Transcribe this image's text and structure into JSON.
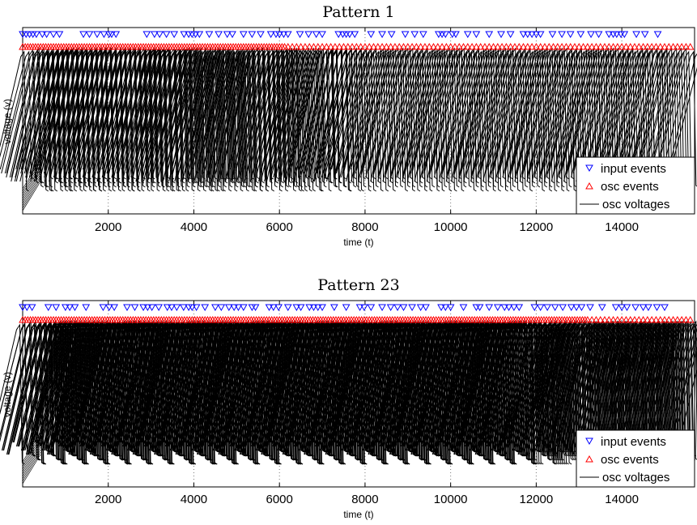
{
  "colors": {
    "input": "#0000ff",
    "osc": "#ff0000",
    "voltage": "#000000"
  },
  "chart_data": [
    {
      "type": "line",
      "title": "Pattern 1",
      "xlabel": "time (t)",
      "ylabel": "voltage (v)",
      "xlim": [
        0,
        15700
      ],
      "xticks": [
        2000,
        4000,
        6000,
        8000,
        10000,
        12000,
        14000
      ],
      "grid": "dotted vertical lines at x ticks",
      "legend": {
        "placement": "lower-right",
        "entries": [
          "input events",
          "osc events",
          "osc voltages"
        ]
      },
      "series": [
        {
          "name": "input events",
          "kind": "marker-down-triangle",
          "x": [
            0,
            80,
            160,
            240,
            320,
            460,
            560,
            720,
            860,
            1420,
            1560,
            1740,
            1900,
            2020,
            2080,
            2180,
            2900,
            3080,
            3200,
            3360,
            3540,
            3770,
            3880,
            3960,
            4040,
            4130,
            4360,
            4580,
            4780,
            4900,
            5160,
            5360,
            5560,
            5800,
            5920,
            6000,
            6100,
            6200,
            6480,
            6680,
            6860,
            7000,
            7380,
            7480,
            7560,
            7640,
            7760,
            8140,
            8400,
            8620,
            8940,
            9160,
            9360,
            9720,
            9800,
            9880,
            10040,
            10120,
            10400,
            10600,
            10900,
            11180,
            11400,
            11700,
            11800,
            11900,
            12000,
            12100,
            12380,
            12600,
            12800,
            13040,
            13280,
            13460,
            13700,
            13800,
            13880,
            13980,
            14060,
            14340,
            14540,
            14840
          ]
        },
        {
          "name": "osc events",
          "kind": "marker-up-triangle",
          "x": [
            0,
            60,
            120,
            180,
            240,
            300,
            360,
            420,
            480,
            540,
            600,
            660,
            720,
            780,
            840,
            900,
            960,
            1020,
            1080,
            1140,
            1200,
            1260,
            1320,
            1380,
            1440,
            1500,
            1560,
            1620,
            1680,
            1740,
            1800,
            1860,
            1920,
            1980,
            2040,
            2100,
            2160,
            2220,
            2280,
            2340,
            2400,
            2460,
            2520,
            2580,
            2640,
            2700,
            2760,
            2820,
            2880,
            2940,
            3000,
            3060,
            3120,
            3180,
            3240,
            3300,
            3360,
            3420,
            3480,
            3540,
            3600,
            3660,
            3720,
            3780,
            3840,
            3900,
            3960,
            4020,
            4080,
            4140,
            4200,
            4260,
            4320,
            4380,
            4440,
            4500,
            4560,
            4620,
            4680,
            4740,
            4800,
            4860,
            4920,
            4980,
            5040,
            5100,
            5160,
            5220,
            5280,
            5340,
            5400,
            5460,
            5520,
            5580,
            5640,
            5700,
            5760,
            5820,
            5880,
            5940,
            6000,
            6060,
            6120,
            6200,
            6300,
            6400,
            6500,
            6600,
            6700,
            6800,
            6900,
            7000,
            7100,
            7200,
            7300,
            7400,
            7500,
            7600,
            7700,
            7800,
            7900,
            8000,
            8100,
            8200,
            8300,
            8400,
            8500,
            8600,
            8700,
            8800,
            8900,
            9000,
            9100,
            9200,
            9300,
            9400,
            9500,
            9600,
            9700,
            9800,
            9900,
            10000,
            10100,
            10200,
            10300,
            10400,
            10500,
            10600,
            10700,
            10800,
            10900,
            11000,
            11100,
            11200,
            11300,
            11400,
            11500,
            11600,
            11700,
            11800,
            11900,
            12000,
            12100,
            12200,
            12300,
            12400,
            12500,
            12600,
            12700,
            12800,
            12900,
            13000,
            13100,
            13200,
            13300,
            13400,
            13500,
            13600,
            13700,
            13800,
            13900,
            14000,
            14100,
            14200,
            14300,
            14400,
            14500,
            14600,
            14700,
            14800,
            14900,
            15000,
            15100,
            15200,
            15300,
            15400,
            15500,
            15600
          ]
        },
        {
          "name": "osc voltages",
          "kind": "line",
          "spikes": [
            600,
            800,
            950,
            1150,
            1400,
            1600,
            1850,
            2050,
            2300,
            2500,
            2750,
            2950,
            3200,
            3450,
            3650,
            3900,
            4150,
            4400,
            4650,
            4900,
            5150,
            5400,
            5650,
            5950,
            6200,
            6500,
            6800,
            7100,
            7450,
            7800,
            8200,
            8600,
            9000,
            9400,
            9800,
            10200,
            10600,
            11000,
            11400,
            11800,
            12200,
            12600,
            13000,
            13400,
            13800,
            14200,
            14600,
            15050,
            15450
          ],
          "oscillators": 10
        }
      ]
    },
    {
      "type": "line",
      "title": "Pattern 23",
      "xlabel": "time (t)",
      "ylabel": "voltage (v)",
      "xlim": [
        0,
        15700
      ],
      "xticks": [
        2000,
        4000,
        6000,
        8000,
        10000,
        12000,
        14000
      ],
      "grid": "dotted vertical lines at x ticks",
      "legend": {
        "placement": "lower-right",
        "entries": [
          "input events",
          "osc events",
          "osc voltages"
        ]
      },
      "series": [
        {
          "name": "input events",
          "kind": "marker-down-triangle",
          "x": [
            0,
            100,
            220,
            600,
            780,
            1000,
            1100,
            1220,
            1480,
            1880,
            2020,
            2140,
            2440,
            2620,
            2820,
            2920,
            3020,
            3180,
            3380,
            3480,
            3600,
            3760,
            3880,
            3960,
            4060,
            4260,
            4500,
            4640,
            4820,
            4940,
            5040,
            5160,
            5360,
            5440,
            5760,
            5860,
            5980,
            6200,
            6400,
            6500,
            6700,
            6800,
            6900,
            7000,
            7280,
            7560,
            7880,
            7980,
            8140,
            8400,
            8600,
            8760,
            8900,
            9100,
            9300,
            9420,
            9780,
            9880,
            10000,
            10300,
            10600,
            10680,
            10900,
            11100,
            11260,
            11360,
            11480,
            11600,
            11960,
            12100,
            12260,
            12440,
            12620,
            12820,
            12940,
            13060,
            13260,
            13540,
            13860,
            14000,
            14120,
            14320,
            14500,
            14620,
            14820,
            15000
          ]
        },
        {
          "name": "osc events",
          "kind": "marker-up-triangle",
          "x": [
            0,
            60,
            120,
            180,
            240,
            300,
            360,
            420,
            480,
            540,
            600,
            660,
            720,
            780,
            840,
            900,
            960,
            1020,
            1080,
            1140,
            1200,
            1260,
            1320,
            1380,
            1440,
            1500,
            1560,
            1620,
            1680,
            1740,
            1800,
            1860,
            1920,
            1980,
            2040,
            2100,
            2160,
            2220,
            2280,
            2340,
            2400,
            2460,
            2520,
            2580,
            2640,
            2700,
            2760,
            2820,
            2880,
            2940,
            3000,
            3060,
            3120,
            3180,
            3240,
            3300,
            3360,
            3420,
            3480,
            3540,
            3600,
            3660,
            3720,
            3780,
            3840,
            3900,
            3960,
            4020,
            4080,
            4140,
            4200,
            4260,
            4320,
            4380,
            4440,
            4500,
            4560,
            4620,
            4680,
            4740,
            4800,
            4860,
            4920,
            4980,
            5040,
            5100,
            5160,
            5220,
            5280,
            5340,
            5400,
            5460,
            5520,
            5580,
            5640,
            5700,
            5760,
            5820,
            5880,
            5940,
            6000,
            6060,
            6120,
            6180,
            6240,
            6300,
            6360,
            6420,
            6480,
            6540,
            6600,
            6660,
            6720,
            6780,
            6840,
            6900,
            6960,
            7020,
            7080,
            7140,
            7200,
            7260,
            7320,
            7380,
            7440,
            7500,
            7560,
            7620,
            7680,
            7740,
            7800,
            7860,
            7920,
            7980,
            8040,
            8100,
            8160,
            8220,
            8280,
            8340,
            8400,
            8460,
            8520,
            8580,
            8640,
            8700,
            8760,
            8820,
            8880,
            8940,
            9000,
            9060,
            9120,
            9180,
            9240,
            9300,
            9360,
            9420,
            9480,
            9540,
            9600,
            9660,
            9720,
            9780,
            9840,
            9900,
            9960,
            10020,
            10080,
            10140,
            10200,
            10260,
            10320,
            10380,
            10440,
            10500,
            10560,
            10620,
            10680,
            10740,
            10800,
            10860,
            10920,
            10980,
            11040,
            11100,
            11160,
            11220,
            11280,
            11340,
            11400,
            11460,
            11520,
            11580,
            11640,
            11700,
            11760,
            11820,
            11880,
            11940,
            12000,
            12060,
            12120,
            12180,
            12240,
            12300,
            12360,
            12420,
            12480,
            12540,
            12600,
            12660,
            12720,
            12780,
            12840,
            12900,
            12960,
            13020,
            13080,
            13140,
            13200,
            13300,
            13400,
            13500,
            13600,
            13700,
            13800,
            13900,
            14000,
            14100,
            14200,
            14300,
            14400,
            14500,
            14600,
            14700,
            14800,
            14900,
            15000,
            15100,
            15200,
            15300,
            15400,
            15500,
            15600
          ]
        },
        {
          "name": "osc voltages",
          "kind": "line",
          "spikes": [
            500,
            620,
            760,
            880,
            1000,
            1120,
            1240,
            1380,
            1500,
            1620,
            1760,
            1880,
            2000,
            2120,
            2260,
            2380,
            2500,
            2620,
            2760,
            2880,
            3000,
            3120,
            3260,
            3380,
            3500,
            3620,
            3760,
            3880,
            4000,
            4120,
            4260,
            4380,
            4500,
            4620,
            4760,
            4880,
            5000,
            5120,
            5260,
            5380,
            5500,
            5620,
            5760,
            5880,
            6000,
            6120,
            6260,
            6380,
            6500,
            6620,
            6760,
            6880,
            7000,
            7120,
            7260,
            7380,
            7500,
            7620,
            7760,
            7880,
            8000,
            8120,
            8260,
            8380,
            8500,
            8620,
            8760,
            8880,
            9000,
            9120,
            9260,
            9380,
            9500,
            9620,
            9760,
            9880,
            10000,
            10120,
            10260,
            10380,
            10500,
            10620,
            10760,
            10880,
            11000,
            11120,
            11260,
            11380,
            11500,
            11620,
            11760,
            11880,
            12000,
            12140,
            12300,
            12460,
            12620,
            12780,
            12940,
            13100,
            13280,
            13460,
            13640,
            13820,
            14000,
            14180,
            14360,
            14540,
            14720,
            14900,
            15080,
            15260,
            15440,
            15620
          ],
          "oscillators": 10
        }
      ]
    }
  ]
}
